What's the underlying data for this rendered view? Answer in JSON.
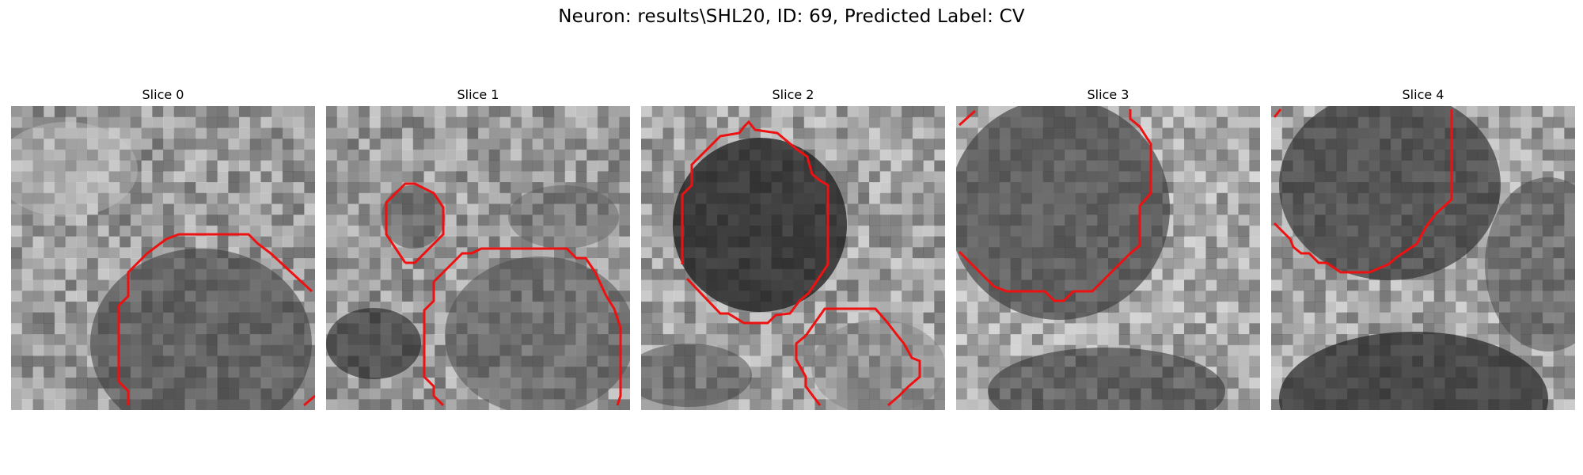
{
  "figure": {
    "suptitle": "Neuron: results\\SHL20, ID: 69, Predicted Label: CV",
    "contour_color": "#ee1111",
    "colormap": "gray"
  },
  "panels": [
    {
      "title": "Slice 0"
    },
    {
      "title": "Slice 1"
    },
    {
      "title": "Slice 2"
    },
    {
      "title": "Slice 3"
    },
    {
      "title": "Slice 4"
    }
  ]
}
